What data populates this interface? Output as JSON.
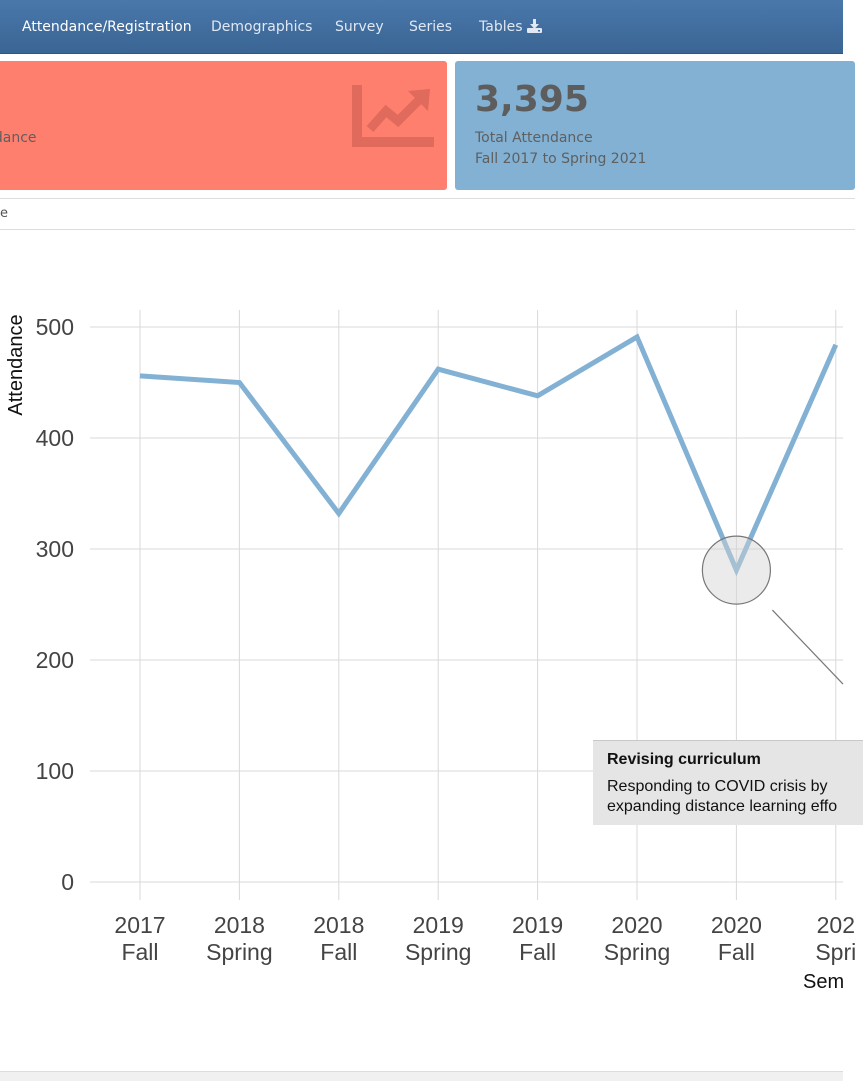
{
  "navbar": {
    "items": [
      {
        "label": "Attendance/Registration",
        "active": true
      },
      {
        "label": "Demographics"
      },
      {
        "label": "Survey"
      },
      {
        "label": "Series"
      },
      {
        "label": "Tables",
        "icon": "download-icon"
      }
    ]
  },
  "value_boxes": [
    {
      "value": "",
      "subtitle": "ndance",
      "color": "#ff7f6e",
      "icon": "line-chart-icon"
    },
    {
      "value": "3,395",
      "subtitle_line1": "Total Attendance",
      "subtitle_line2": "Fall 2017 to Spring 2021",
      "color": "#82b1d4"
    }
  ],
  "tabbar": {
    "fragment": "e"
  },
  "chart_data": {
    "type": "line",
    "ylabel": "Attendance",
    "xlabel": "Sem",
    "ylim": [
      0,
      500
    ],
    "yticks": [
      0,
      100,
      200,
      300,
      400,
      500
    ],
    "categories": [
      [
        "2017",
        "Fall"
      ],
      [
        "2018",
        "Spring"
      ],
      [
        "2018",
        "Fall"
      ],
      [
        "2019",
        "Spring"
      ],
      [
        "2019",
        "Fall"
      ],
      [
        "2020",
        "Spring"
      ],
      [
        "2020",
        "Fall"
      ],
      [
        "202",
        "Spri"
      ]
    ],
    "values": [
      456,
      450,
      332,
      462,
      438,
      491,
      281,
      484
    ],
    "line_color": "#82b1d4",
    "grid": true,
    "highlight": {
      "index": 6,
      "value": 281
    },
    "annotation": {
      "title": "Revising curriculum",
      "line1": "Responding to COVID crisis by",
      "line2": "expanding distance learning effo"
    }
  }
}
